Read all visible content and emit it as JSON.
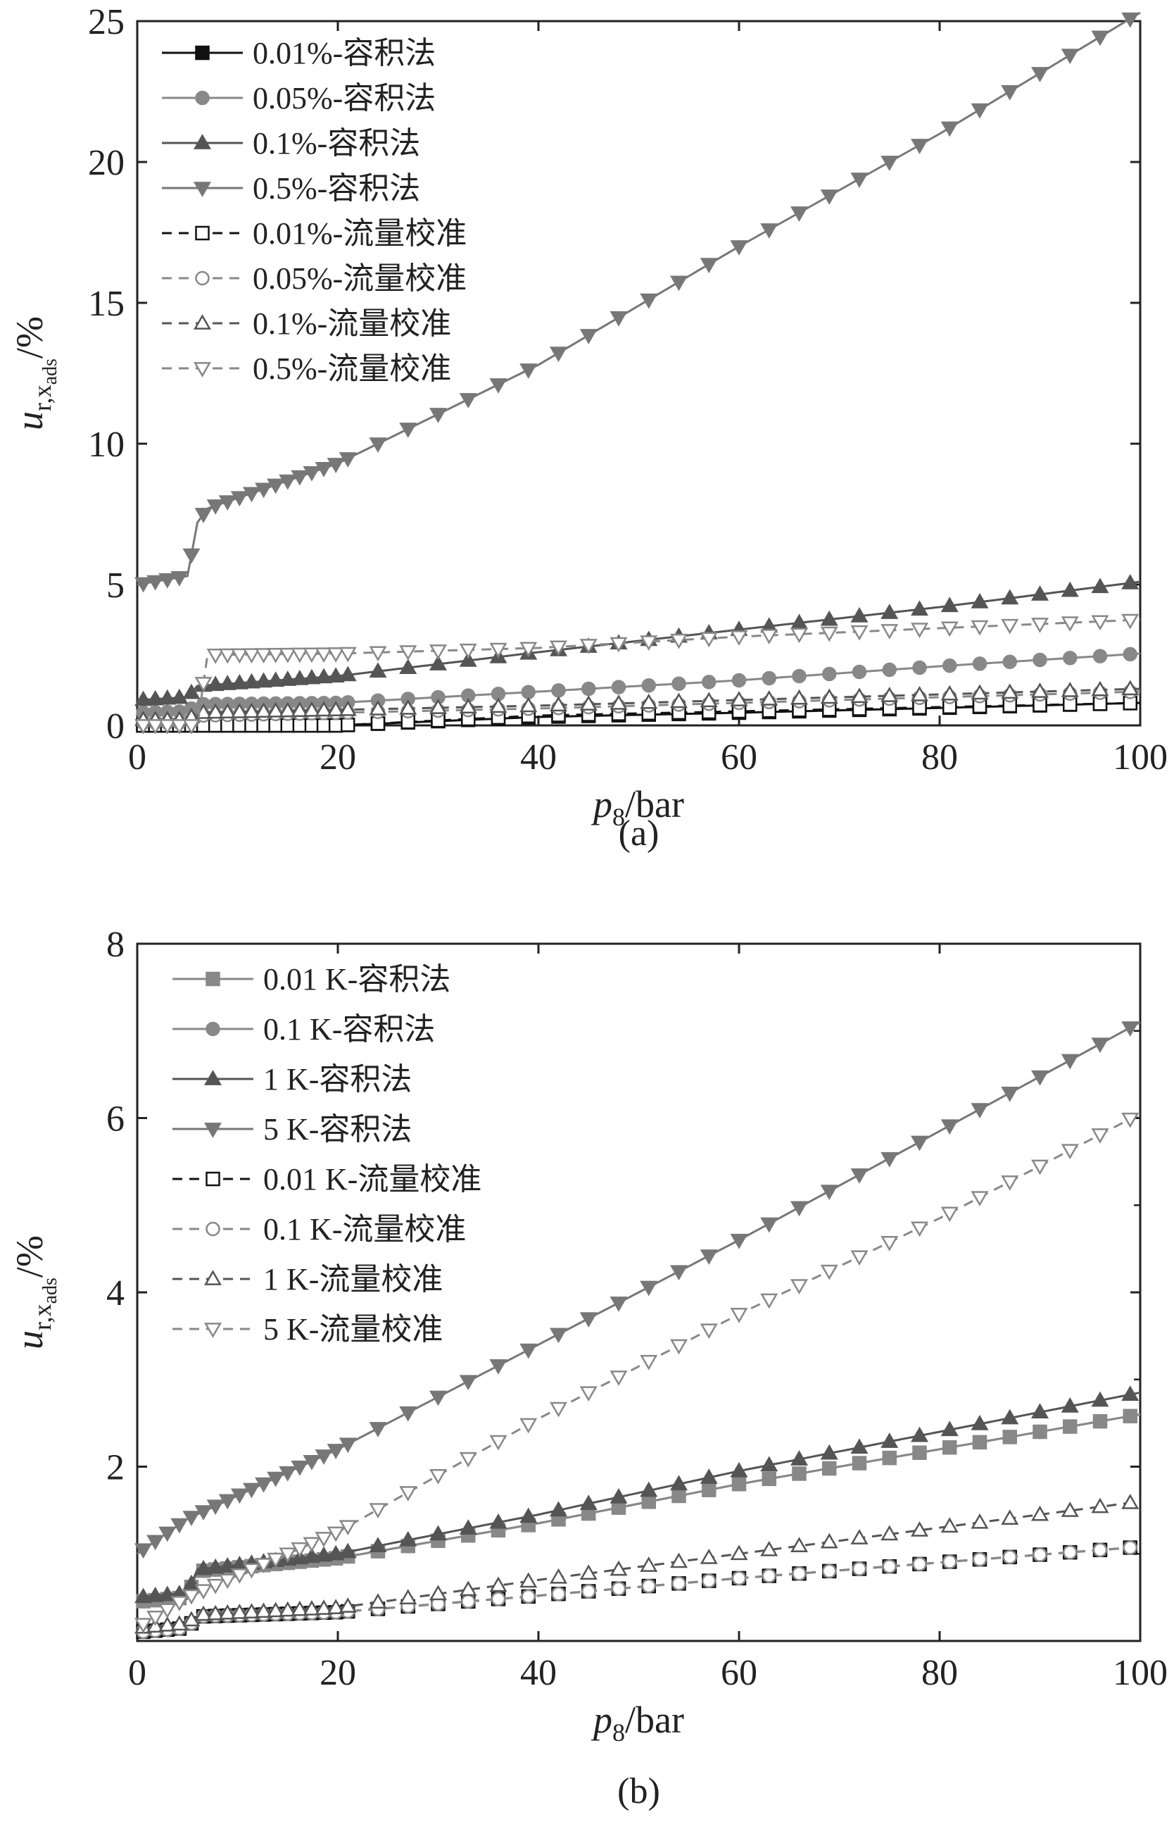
{
  "chart_data": [
    {
      "type": "line",
      "caption": "(a)",
      "xlabel": "p8/bar",
      "xlabel_main": "p",
      "xlabel_sub": "8",
      "xlabel_unit": "/bar",
      "ylabel": "u r,x ads /%",
      "ylabel_main": "u",
      "ylabel_sub": "r,x",
      "ylabel_subsub": "ads",
      "ylabel_unit": "/%",
      "xlim": [
        0,
        100
      ],
      "ylim": [
        0,
        25
      ],
      "xticks": [
        "0",
        "20",
        "40",
        "60",
        "80",
        "100"
      ],
      "yticks": [
        "0",
        "5",
        "10",
        "15",
        "20",
        "25"
      ],
      "legend_position": "top-left",
      "grid": false,
      "series": [
        {
          "name": "0.01%-容积法",
          "marker": "square",
          "fill": "filled",
          "line": "solid",
          "color": "#111111",
          "x": [
            0,
            5,
            6,
            20,
            40,
            60,
            80,
            100
          ],
          "y": [
            0.0,
            0.0,
            0.0,
            0.0,
            0.3,
            0.45,
            0.62,
            0.8
          ]
        },
        {
          "name": "0.05%-容积法",
          "marker": "circle",
          "fill": "filled",
          "line": "solid",
          "color": "#888888",
          "x": [
            0,
            5,
            6,
            20,
            40,
            60,
            80,
            100
          ],
          "y": [
            0.45,
            0.5,
            0.75,
            0.8,
            1.2,
            1.6,
            2.1,
            2.55
          ]
        },
        {
          "name": "0.1%-容积法",
          "marker": "triangle-up",
          "fill": "filled",
          "line": "solid",
          "color": "#555555",
          "x": [
            0,
            5,
            6,
            20,
            40,
            60,
            80,
            100
          ],
          "y": [
            0.9,
            1.0,
            1.4,
            1.75,
            2.6,
            3.4,
            4.2,
            5.1
          ]
        },
        {
          "name": "0.5%-容积法",
          "marker": "triangle-down",
          "fill": "filled",
          "line": "solid",
          "color": "#777777",
          "x": [
            0,
            5,
            6,
            7,
            20,
            40,
            60,
            80,
            100
          ],
          "y": [
            5.0,
            5.3,
            7.2,
            7.7,
            9.3,
            12.8,
            17.0,
            21.0,
            25.3
          ]
        },
        {
          "name": "0.01%-流量校准",
          "marker": "square",
          "fill": "open",
          "line": "dashed",
          "color": "#111111",
          "x": [
            0,
            5,
            6,
            20,
            40,
            60,
            80,
            100
          ],
          "y": [
            0.0,
            0.0,
            0.0,
            0.0,
            0.35,
            0.5,
            0.65,
            0.8
          ]
        },
        {
          "name": "0.05%-流量校准",
          "marker": "circle",
          "fill": "open",
          "line": "dashed",
          "color": "#888888",
          "x": [
            0,
            5,
            6,
            20,
            40,
            60,
            80,
            100
          ],
          "y": [
            0.1,
            0.1,
            0.35,
            0.45,
            0.6,
            0.8,
            1.0,
            1.2
          ]
        },
        {
          "name": "0.1%-流量校准",
          "marker": "triangle-up",
          "fill": "open",
          "line": "dashed",
          "color": "#555555",
          "x": [
            0,
            5,
            6,
            20,
            40,
            60,
            80,
            100
          ],
          "y": [
            0.2,
            0.2,
            0.45,
            0.55,
            0.7,
            0.9,
            1.1,
            1.3
          ]
        },
        {
          "name": "0.5%-流量校准",
          "marker": "triangle-down",
          "fill": "open",
          "line": "dashed",
          "color": "#888888",
          "x": [
            0,
            5,
            6,
            7,
            20,
            40,
            60,
            80,
            100
          ],
          "y": [
            0.0,
            0.0,
            0.0,
            2.5,
            2.55,
            2.75,
            3.15,
            3.45,
            3.75
          ]
        }
      ]
    },
    {
      "type": "line",
      "caption": "(b)",
      "xlabel": "p8/bar",
      "xlabel_main": "p",
      "xlabel_sub": "8",
      "xlabel_unit": "/bar",
      "ylabel": "u r,x ads /%",
      "ylabel_main": "u",
      "ylabel_sub": "r,x",
      "ylabel_subsub": "ads",
      "ylabel_unit": "/%",
      "xlim": [
        0,
        100
      ],
      "ylim": [
        0,
        8
      ],
      "xticks": [
        "0",
        "20",
        "40",
        "60",
        "80",
        "100"
      ],
      "yticks": [
        "2",
        "4",
        "6",
        "8"
      ],
      "legend_position": "top-left",
      "grid": false,
      "series": [
        {
          "name": "0.01 K-容积法",
          "marker": "square",
          "fill": "filled",
          "line": "solid",
          "color": "#888888",
          "x": [
            0,
            5,
            6,
            20,
            40,
            60,
            80,
            100
          ],
          "y": [
            0.45,
            0.5,
            0.8,
            0.95,
            1.35,
            1.8,
            2.2,
            2.6
          ]
        },
        {
          "name": "0.1 K-容积法",
          "marker": "circle",
          "fill": "filled",
          "line": "solid",
          "color": "#888888",
          "x": [
            0,
            5,
            6,
            20,
            40,
            60,
            80,
            100
          ],
          "y": [
            0.45,
            0.5,
            0.8,
            0.95,
            1.35,
            1.8,
            2.2,
            2.6
          ]
        },
        {
          "name": "1 K-容积法",
          "marker": "triangle-up",
          "fill": "filled",
          "line": "solid",
          "color": "#555555",
          "x": [
            0,
            5,
            6,
            20,
            40,
            60,
            80,
            100
          ],
          "y": [
            0.5,
            0.55,
            0.82,
            1.0,
            1.45,
            1.95,
            2.4,
            2.85
          ]
        },
        {
          "name": "5 K-容积法",
          "marker": "triangle-down",
          "fill": "filled",
          "line": "solid",
          "color": "#777777",
          "x": [
            0,
            5,
            20,
            40,
            60,
            80,
            100
          ],
          "y": [
            1.0,
            1.4,
            2.2,
            3.4,
            4.6,
            5.85,
            7.1
          ]
        },
        {
          "name": "0.01 K-流量校准",
          "marker": "square",
          "fill": "open",
          "line": "dashed",
          "color": "#111111",
          "x": [
            0,
            5,
            6,
            20,
            40,
            60,
            80,
            100
          ],
          "y": [
            0.1,
            0.15,
            0.28,
            0.33,
            0.52,
            0.72,
            0.9,
            1.08
          ]
        },
        {
          "name": "0.1 K-流量校准",
          "marker": "circle",
          "fill": "open",
          "line": "dashed",
          "color": "#888888",
          "x": [
            0,
            5,
            6,
            20,
            40,
            60,
            80,
            100
          ],
          "y": [
            0.1,
            0.15,
            0.28,
            0.33,
            0.52,
            0.72,
            0.9,
            1.08
          ]
        },
        {
          "name": "1 K-流量校准",
          "marker": "triangle-up",
          "fill": "open",
          "line": "dashed",
          "color": "#555555",
          "x": [
            0,
            5,
            6,
            20,
            40,
            60,
            80,
            100
          ],
          "y": [
            0.15,
            0.2,
            0.3,
            0.38,
            0.7,
            1.0,
            1.3,
            1.6
          ]
        },
        {
          "name": "5 K-流量校准",
          "marker": "triangle-down",
          "fill": "open",
          "line": "dashed",
          "color": "#888888",
          "x": [
            0,
            5,
            20,
            40,
            60,
            80,
            100
          ],
          "y": [
            0.15,
            0.5,
            1.25,
            2.55,
            3.75,
            4.85,
            6.05
          ]
        }
      ]
    }
  ]
}
